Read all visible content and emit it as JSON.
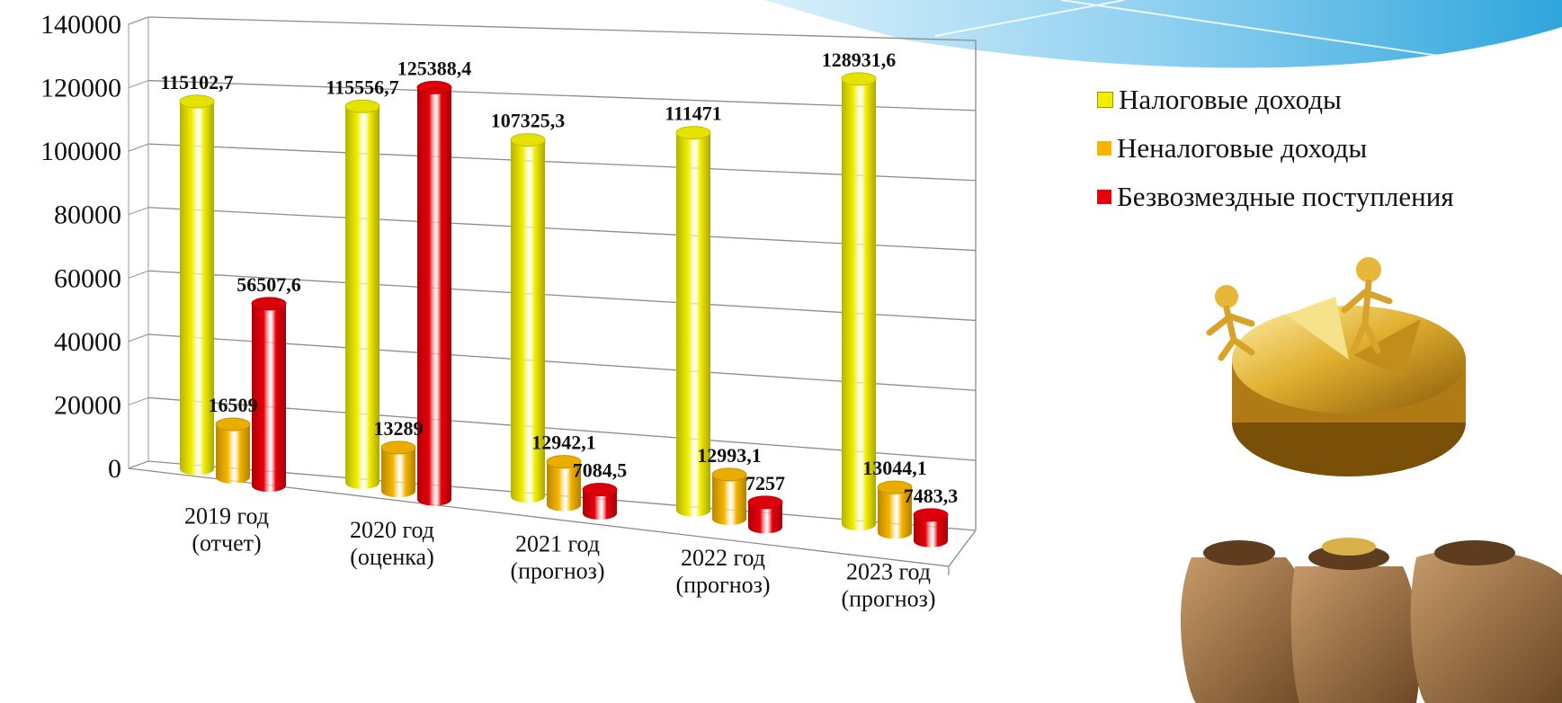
{
  "chart_data": {
    "type": "bar",
    "title": "",
    "xlabel": "",
    "ylabel": "",
    "ylim": [
      0,
      140000
    ],
    "yticks": [
      0,
      20000,
      40000,
      60000,
      80000,
      100000,
      120000,
      140000
    ],
    "grid": true,
    "legend_position": "right",
    "categories": [
      [
        "2019 год",
        "(отчет)"
      ],
      [
        "2020 год",
        "(оценка)"
      ],
      [
        "2021 год",
        "(прогноз)"
      ],
      [
        "2022 год",
        "(прогноз)"
      ],
      [
        "2023 год",
        "(прогноз)"
      ]
    ],
    "series": [
      {
        "name": "Налоговые доходы",
        "color": "#f2ee00",
        "values": [
          115102.7,
          115556.7,
          107325.3,
          111471,
          128931.6
        ],
        "labels": [
          "115102,7",
          "115556,7",
          "107325,3",
          "111471",
          "128931,6"
        ]
      },
      {
        "name": "Неналоговые доходы",
        "color": "#f7b500",
        "values": [
          16509,
          13289,
          12942.1,
          12993.1,
          13044.1
        ],
        "labels": [
          "16509",
          "13289",
          "12942,1",
          "12993,1",
          "13044,1"
        ]
      },
      {
        "name": "Безвозмездные поступления",
        "color": "#e8000a",
        "values": [
          56507.6,
          125388.4,
          7084.5,
          7257,
          7483.3
        ],
        "labels": [
          "56507,6",
          "125388,4",
          "7084,5",
          "7257",
          "7483,3"
        ]
      }
    ]
  }
}
